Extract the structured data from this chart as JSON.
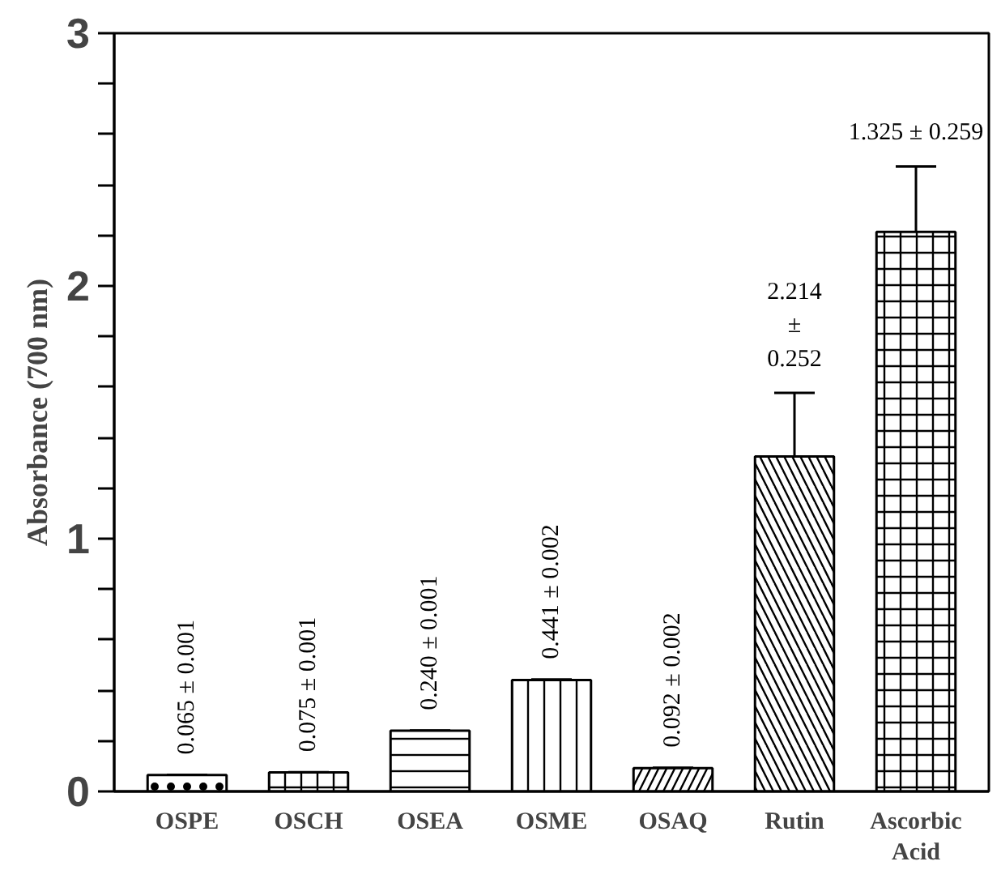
{
  "chart_data": {
    "type": "bar",
    "ylabel": "Absorbance (700 nm)",
    "categories": [
      "OSPE",
      "OSCH",
      "OSEA",
      "OSME",
      "OSAQ",
      "Rutin",
      "Ascorbic Acid"
    ],
    "values": [
      0.065,
      0.075,
      0.24,
      0.441,
      0.092,
      1.325,
      2.214
    ],
    "errors": [
      0.001,
      0.001,
      0.001,
      0.002,
      0.002,
      0.252,
      0.259
    ],
    "value_labels": [
      "0.065 ± 0.001",
      "0.075 ± 0.001",
      "0.240 ± 0.001",
      "0.441 ± 0.002",
      "0.092 ± 0.002",
      null,
      null
    ],
    "annotations": [
      "2.214\n±\n0.252",
      "1.325 ± 0.259"
    ],
    "color": "#ffffff",
    "ylim": [
      0,
      3
    ],
    "yticks": [
      0,
      {
        "value": 0.2,
        "label": null
      },
      {
        "value": 0.4,
        "label": null
      },
      {
        "value": 0.6,
        "label": null
      },
      {
        "value": 0.8,
        "label": null
      },
      1,
      {
        "value": 1.2,
        "label": null
      },
      {
        "value": 1.4,
        "label": null
      },
      {
        "value": 1.6,
        "label": null
      },
      {
        "value": 1.8,
        "label": null
      },
      2,
      {
        "value": 2.2,
        "label": null
      },
      {
        "value": 2.4,
        "label": null
      },
      {
        "value": 2.6,
        "label": null
      },
      {
        "value": 2.8,
        "label": null
      },
      3
    ],
    "grid": false
  }
}
